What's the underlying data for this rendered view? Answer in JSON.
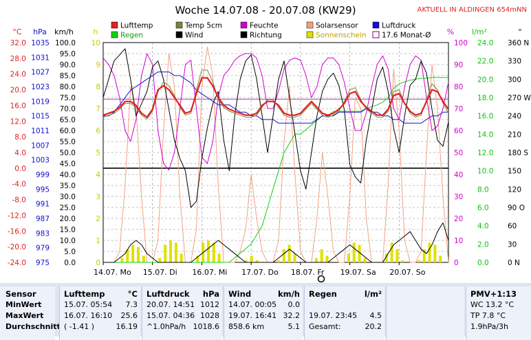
{
  "title": "Woche 14.07.08 - 20.07.08 (KW29)",
  "site_note": "AKTUELL IN ALDINGEN 654mNN",
  "legend": [
    {
      "label": "Lufttemp",
      "color": "#e02020",
      "kind": "box"
    },
    {
      "label": "Temp 5cm",
      "color": "#808040",
      "kind": "box"
    },
    {
      "label": "Feuchte",
      "color": "#d000d0",
      "kind": "box"
    },
    {
      "label": "Solarsensor",
      "color": "#f4a080",
      "kind": "box"
    },
    {
      "label": "Luftdruck",
      "color": "#1010d0",
      "kind": "box"
    },
    {
      "label": "Regen",
      "color": "#10d010",
      "kind": "box"
    },
    {
      "label": "Wind",
      "color": "#000000",
      "kind": "box"
    },
    {
      "label": "Richtung",
      "color": "#000000",
      "kind": "box"
    },
    {
      "label": "Sonnenschein",
      "color": "#e0e000",
      "kind": "box"
    },
    {
      "label": "17.6 Monat-Ø",
      "color": "#800080",
      "kind": "hollow"
    }
  ],
  "chart_data": {
    "type": "line",
    "x_ticks": [
      "14.07. Mo",
      "15.07. Di",
      "16.07. Mi",
      "17.07. Do",
      "18.07. Fr",
      "19.07. Sa",
      "20.07. So"
    ],
    "axes": {
      "celsius": {
        "unit": "°C",
        "color": "#e02020",
        "ticks": [
          "32.0",
          "28.0",
          "24.0",
          "20.0",
          "16.0",
          "12.0",
          "8.0",
          "4.0",
          "0.0",
          "-4.0",
          "-8.0",
          "-12.0",
          "-16.0",
          "-20.0",
          "-24.0"
        ]
      },
      "hpa": {
        "unit": "hPa",
        "color": "#1010d0",
        "ticks": [
          "1035",
          "1031",
          "1027",
          "1023",
          "1019",
          "1015",
          "1011",
          "1007",
          "1003",
          "999",
          "995",
          "991",
          "987",
          "983",
          "979",
          "975"
        ]
      },
      "kmh": {
        "unit": "km/h",
        "color": "#000000",
        "ticks": [
          "100.0",
          "95.0",
          "90.0",
          "85.0",
          "80.0",
          "75.0",
          "70.0",
          "65.0",
          "60.0",
          "55.0",
          "50.0",
          "45.0",
          "40.0",
          "35.0",
          "30.0",
          "25.0",
          "20.0",
          "15.0",
          "10.0",
          "5.0",
          "0.0"
        ]
      },
      "hours": {
        "unit": "h",
        "color": "#c8c800",
        "ticks": [
          "10",
          "9",
          "8",
          "7",
          "6",
          "5",
          "4",
          "3",
          "2",
          "1",
          "0"
        ]
      },
      "percent": {
        "unit": "%",
        "color": "#d000d0",
        "ticks": [
          "100",
          "90",
          "80",
          "70",
          "60",
          "50",
          "40",
          "30",
          "20",
          "10",
          "0"
        ]
      },
      "rain": {
        "unit": "l/m²",
        "color": "#10c010",
        "ticks": [
          "24.0",
          "22.0",
          "20.0",
          "18.0",
          "16.0",
          "14.0",
          "12.0",
          "10.0",
          "8.0",
          "6.0",
          "4.0",
          "2.0",
          "0.0"
        ]
      },
      "direction": {
        "unit": "°",
        "color": "#000000",
        "ticks": [
          "360 N",
          "330",
          "300",
          "270 W",
          "240",
          "210",
          "180 S",
          "150",
          "120",
          "90 O",
          "60",
          "30",
          "0 N"
        ]
      }
    },
    "month_avg_temp": 17.6,
    "series": [
      {
        "name": "Lufttemp",
        "axis": "celsius",
        "color": "#e02020",
        "width": 2.2,
        "values": [
          13.5,
          14,
          14.5,
          15.5,
          17,
          17,
          16,
          14,
          13,
          15,
          20,
          21,
          20,
          18,
          16,
          14,
          14.5,
          19,
          23,
          23,
          21,
          18,
          16,
          15,
          14.5,
          14,
          13.5,
          13.5,
          14,
          16,
          17,
          17,
          16,
          14,
          13.5,
          13.5,
          14,
          15.5,
          17,
          15.5,
          14,
          13.5,
          14,
          15,
          16.5,
          19,
          19.5,
          17,
          15.5,
          14.5,
          13.5,
          13.5,
          15,
          18.5,
          19,
          16.5,
          14.5,
          13.5,
          14,
          17,
          20,
          19.5,
          17,
          15
        ]
      },
      {
        "name": "Temp 5cm",
        "axis": "celsius",
        "color": "#808040",
        "width": 1,
        "values": [
          13,
          13.5,
          14,
          15,
          16.5,
          16.5,
          15.5,
          13.5,
          12.5,
          14.5,
          19.5,
          22,
          21,
          18.5,
          15.5,
          13.5,
          14,
          20,
          25,
          25,
          22,
          17.5,
          15.5,
          14.5,
          14,
          13.5,
          13,
          13,
          13.5,
          15.5,
          17.5,
          17.5,
          15.5,
          13.5,
          13,
          13,
          13.5,
          15,
          16.5,
          15,
          13.5,
          13,
          13.5,
          14.5,
          17,
          20,
          20.5,
          17.5,
          15,
          14,
          13,
          13,
          14.5,
          19.5,
          20,
          16.5,
          14,
          13,
          13.5,
          17.5,
          21.5,
          20,
          16.5,
          14
        ]
      },
      {
        "name": "Feuchte",
        "axis": "percent",
        "color": "#d000d0",
        "width": 1,
        "values": [
          93,
          90,
          85,
          75,
          60,
          55,
          65,
          85,
          95,
          90,
          60,
          45,
          42,
          50,
          70,
          90,
          92,
          70,
          48,
          45,
          55,
          75,
          85,
          88,
          92,
          94,
          95,
          95,
          93,
          85,
          70,
          70,
          78,
          88,
          92,
          93,
          92,
          85,
          75,
          80,
          90,
          93,
          93,
          90,
          82,
          70,
          60,
          60,
          68,
          80,
          90,
          94,
          88,
          70,
          65,
          80,
          90,
          94,
          92,
          75,
          60,
          62,
          70,
          82
        ]
      },
      {
        "name": "Luftdruck",
        "axis": "hpa",
        "color": "#1010d0",
        "width": 1,
        "values": [
          1015,
          1015,
          1016,
          1018,
          1020,
          1022,
          1023,
          1024,
          1025,
          1026,
          1027,
          1027,
          1027,
          1026,
          1026,
          1025,
          1024,
          1022,
          1021,
          1020,
          1019,
          1018,
          1018,
          1018,
          1017,
          1016,
          1016,
          1015,
          1015,
          1014,
          1014,
          1014,
          1013,
          1013,
          1013,
          1013,
          1013,
          1013,
          1013,
          1014,
          1015,
          1015,
          1015,
          1016,
          1016,
          1016,
          1016,
          1016,
          1017,
          1016,
          1016,
          1015,
          1015,
          1014,
          1014,
          1013,
          1013,
          1013,
          1013,
          1014,
          1015,
          1015,
          1016,
          1016
        ]
      },
      {
        "name": "Wind",
        "axis": "kmh",
        "color": "#000000",
        "width": 1,
        "values": [
          0,
          0,
          0,
          2,
          4,
          8,
          10,
          8,
          4,
          2,
          0,
          0,
          0,
          0,
          0,
          0,
          0,
          2,
          4,
          6,
          8,
          10,
          8,
          6,
          4,
          2,
          0,
          0,
          0,
          0,
          0,
          0,
          2,
          4,
          6,
          4,
          2,
          0,
          0,
          0,
          0,
          0,
          2,
          4,
          6,
          8,
          6,
          4,
          2,
          0,
          0,
          0,
          4,
          8,
          10,
          12,
          14,
          10,
          6,
          4,
          8,
          14,
          18,
          10
        ]
      },
      {
        "name": "Richtung",
        "axis": "direction",
        "color": "#000000",
        "width": 1,
        "values": [
          270,
          300,
          330,
          340,
          350,
          300,
          240,
          260,
          280,
          320,
          330,
          300,
          250,
          200,
          170,
          150,
          90,
          100,
          170,
          220,
          260,
          280,
          200,
          150,
          240,
          300,
          330,
          340,
          300,
          240,
          180,
          240,
          300,
          330,
          270,
          210,
          150,
          120,
          180,
          240,
          280,
          300,
          310,
          290,
          250,
          160,
          140,
          130,
          200,
          250,
          300,
          320,
          280,
          220,
          180,
          240,
          290,
          300,
          330,
          310,
          250,
          200,
          190,
          230
        ]
      },
      {
        "name": "Regen",
        "axis": "rain",
        "color": "#10d010",
        "width": 1,
        "values": [
          0,
          0,
          0,
          0,
          0,
          0,
          0,
          0,
          0,
          0,
          0,
          0,
          0,
          0,
          0,
          0,
          0,
          0,
          0,
          0,
          0,
          0,
          0,
          0,
          0.5,
          1,
          1.5,
          2,
          3,
          4,
          6,
          8,
          10,
          12,
          13,
          14,
          14,
          14.5,
          15,
          15.5,
          16,
          16,
          16.5,
          16.5,
          16.5,
          16.5,
          16.5,
          16.5,
          16.8,
          17,
          17.2,
          17.5,
          18,
          19,
          19.5,
          19.7,
          19.9,
          20,
          20.1,
          20.1,
          20.2,
          20.2,
          20.2,
          20.2
        ]
      },
      {
        "name": "Solarsensor",
        "axis": "percent",
        "color": "#f4a080",
        "width": 1,
        "values": [
          0,
          0,
          0,
          5,
          35,
          80,
          70,
          30,
          0,
          0,
          10,
          60,
          95,
          80,
          30,
          0,
          0,
          15,
          80,
          98,
          85,
          35,
          0,
          0,
          0,
          5,
          15,
          40,
          20,
          5,
          0,
          0,
          10,
          55,
          80,
          40,
          5,
          0,
          0,
          20,
          50,
          30,
          5,
          0,
          0,
          30,
          75,
          70,
          20,
          0,
          0,
          0,
          35,
          88,
          60,
          10,
          0,
          0,
          5,
          50,
          90,
          70,
          30,
          0
        ]
      }
    ],
    "sunshine_hours": [
      0,
      0,
      0,
      0.2,
      0.6,
      0.8,
      0.7,
      0.3,
      0,
      0,
      0.2,
      0.8,
      1,
      0.9,
      0.4,
      0,
      0,
      0.3,
      0.9,
      1,
      0.9,
      0.4,
      0,
      0,
      0,
      0,
      0.1,
      0.3,
      0.1,
      0,
      0,
      0,
      0.1,
      0.6,
      0.8,
      0.4,
      0,
      0,
      0,
      0.2,
      0.6,
      0.3,
      0,
      0,
      0,
      0.4,
      0.9,
      0.8,
      0.2,
      0,
      0,
      0,
      0.4,
      0.9,
      0.6,
      0.1,
      0,
      0,
      0.1,
      0.6,
      0.9,
      0.8,
      0.3,
      0
    ]
  },
  "stats": {
    "sensor": {
      "head": "Sensor",
      "rows": [
        "MinWert",
        "MaxWert",
        "Durchschnitt"
      ]
    },
    "lufttemp": {
      "head": "Lufttemp",
      "unit": "°C",
      "rows": [
        [
          "15.07.  05:54",
          "7.3"
        ],
        [
          "16.07.  16:10",
          "25.6"
        ],
        [
          "( -1.41 )",
          "16.19"
        ]
      ]
    },
    "luftdruck": {
      "head": "Luftdruck",
      "unit": "hPa",
      "rows": [
        [
          "20.07.  14:51",
          "1012"
        ],
        [
          "15.07.  04:36",
          "1028"
        ],
        [
          "^1.0hPa/h",
          "1018.6"
        ]
      ]
    },
    "wind": {
      "head": "Wind",
      "unit": "km/h",
      "rows": [
        [
          "14.07.  00:05",
          "0.0"
        ],
        [
          "19.07.  16:41",
          "32.2"
        ],
        [
          "858.6 km",
          "5.1"
        ]
      ]
    },
    "regen": {
      "head": "Regen",
      "unit": "l/m²",
      "rows": [
        [
          "",
          ""
        ],
        [
          "19.07.  23:45",
          "4.5"
        ],
        [
          "Gesamt:",
          "20.2"
        ]
      ]
    },
    "pmv": {
      "head": "PMV+1:13",
      "rows": [
        "WC 13.2 °C",
        "TP 7.8 °C",
        "1.9hPa/3h"
      ]
    }
  }
}
